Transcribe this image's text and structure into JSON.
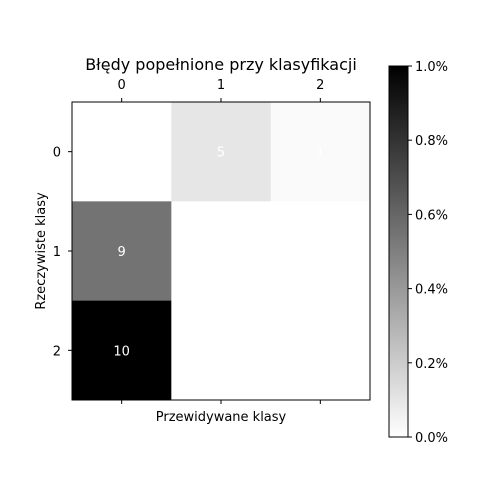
{
  "chart_data": {
    "type": "heatmap",
    "title": "Błędy popełnione przy klasyfikacji",
    "xlabel": "Przewidywane klasy",
    "ylabel": "Rzeczywiste klasy",
    "x_ticks": [
      "0",
      "1",
      "2"
    ],
    "x_ticks_position": "top",
    "y_ticks": [
      "0",
      "1",
      "2"
    ],
    "cells": [
      [
        null,
        5,
        1
      ],
      [
        9,
        null,
        null
      ],
      [
        10,
        null,
        null
      ]
    ],
    "cell_labels": [
      [
        "",
        "5",
        "1"
      ],
      [
        "9",
        "",
        ""
      ],
      [
        "10",
        "",
        ""
      ]
    ],
    "shade": [
      [
        0.0,
        0.1,
        0.02
      ],
      [
        0.55,
        0.0,
        0.0
      ],
      [
        1.0,
        0.0,
        0.0
      ]
    ],
    "colormap": "greys",
    "colorbar": {
      "range": [
        0,
        1
      ],
      "ticks": [
        "0.0%",
        "0.2%",
        "0.4%",
        "0.6%",
        "0.8%",
        "1.0%"
      ],
      "position": "right"
    }
  }
}
